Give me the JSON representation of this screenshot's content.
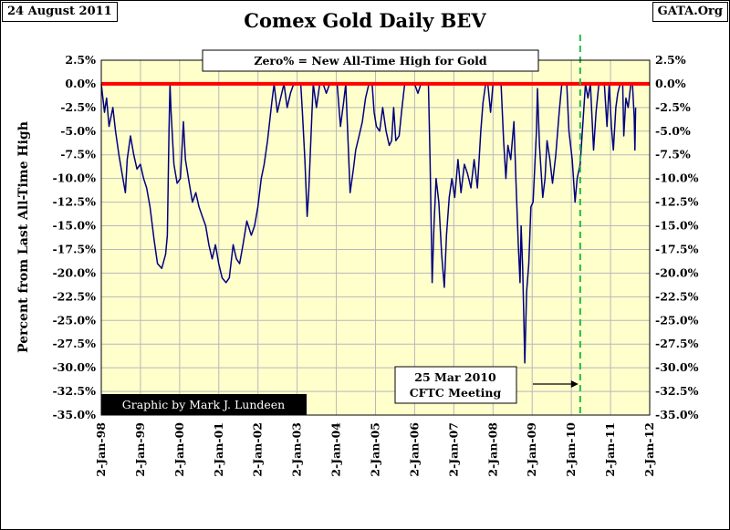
{
  "header": {
    "date": "24 August 2011",
    "source": "GATA.Org"
  },
  "chart_data": {
    "type": "line",
    "title": "Comex Gold Daily BEV",
    "ylabel": "Percent from Last All-Time High",
    "xlabel": "",
    "ylim": [
      -35.0,
      2.5
    ],
    "grid": true,
    "y_ticks": [
      "2.5%",
      "0.0%",
      "-2.5%",
      "-5.0%",
      "-7.5%",
      "-10.0%",
      "-12.5%",
      "-15.0%",
      "-17.5%",
      "-20.0%",
      "-22.5%",
      "-25.0%",
      "-27.5%",
      "-30.0%",
      "-32.5%",
      "-35.0%"
    ],
    "x_ticks": [
      "2-Jan-98",
      "2-Jan-99",
      "2-Jan-00",
      "2-Jan-01",
      "2-Jan-02",
      "2-Jan-03",
      "2-Jan-04",
      "2-Jan-05",
      "2-Jan-06",
      "2-Jan-07",
      "2-Jan-08",
      "2-Jan-09",
      "2-Jan-10",
      "2-Jan-11",
      "2-Jan-12"
    ],
    "x_range": [
      "1998-01-02",
      "2012-01-02"
    ],
    "series": [
      {
        "color": "#000080",
        "points": [
          [
            "1998-01-02",
            0.0
          ],
          [
            "1998-02-01",
            -3.0
          ],
          [
            "1998-02-20",
            -1.5
          ],
          [
            "1998-03-15",
            -4.5
          ],
          [
            "1998-04-20",
            -2.5
          ],
          [
            "1998-05-15",
            -5.0
          ],
          [
            "1998-06-15",
            -7.5
          ],
          [
            "1998-07-15",
            -9.5
          ],
          [
            "1998-08-15",
            -11.5
          ],
          [
            "1998-09-01",
            -8.0
          ],
          [
            "1998-10-01",
            -5.5
          ],
          [
            "1998-11-01",
            -7.5
          ],
          [
            "1998-12-01",
            -9.0
          ],
          [
            "1999-01-01",
            -8.5
          ],
          [
            "1999-02-01",
            -10.0
          ],
          [
            "1999-03-01",
            -11.0
          ],
          [
            "1999-04-01",
            -13.0
          ],
          [
            "1999-05-10",
            -16.5
          ],
          [
            "1999-06-10",
            -19.0
          ],
          [
            "1999-07-20",
            -19.5
          ],
          [
            "1999-08-25",
            -18.0
          ],
          [
            "1999-09-10",
            -16.0
          ],
          [
            "1999-09-25",
            -5.0
          ],
          [
            "1999-10-05",
            0.0
          ],
          [
            "1999-10-15",
            -3.0
          ],
          [
            "1999-11-10",
            -8.5
          ],
          [
            "1999-12-10",
            -10.5
          ],
          [
            "2000-01-10",
            -10.0
          ],
          [
            "2000-02-07",
            -4.0
          ],
          [
            "2000-02-25",
            -8.0
          ],
          [
            "2000-04-01",
            -10.5
          ],
          [
            "2000-05-01",
            -12.5
          ],
          [
            "2000-06-01",
            -11.5
          ],
          [
            "2000-07-01",
            -13.0
          ],
          [
            "2000-08-01",
            -14.0
          ],
          [
            "2000-09-01",
            -15.0
          ],
          [
            "2000-10-01",
            -17.0
          ],
          [
            "2000-11-01",
            -18.5
          ],
          [
            "2000-12-01",
            -17.0
          ],
          [
            "2001-01-01",
            -19.0
          ],
          [
            "2001-02-01",
            -20.5
          ],
          [
            "2001-03-10",
            -21.0
          ],
          [
            "2001-04-10",
            -20.5
          ],
          [
            "2001-05-15",
            -17.0
          ],
          [
            "2001-06-15",
            -18.5
          ],
          [
            "2001-07-15",
            -19.0
          ],
          [
            "2001-08-15",
            -17.0
          ],
          [
            "2001-09-20",
            -14.5
          ],
          [
            "2001-11-01",
            -16.0
          ],
          [
            "2001-12-01",
            -15.0
          ],
          [
            "2002-01-01",
            -13.0
          ],
          [
            "2002-02-01",
            -10.0
          ],
          [
            "2002-03-01",
            -8.5
          ],
          [
            "2002-04-01",
            -6.0
          ],
          [
            "2002-05-10",
            -2.0
          ],
          [
            "2002-06-01",
            0.0
          ],
          [
            "2002-07-01",
            -3.0
          ],
          [
            "2002-08-01",
            -1.5
          ],
          [
            "2002-09-01",
            0.0
          ],
          [
            "2002-10-01",
            -2.5
          ],
          [
            "2002-11-01",
            -1.0
          ],
          [
            "2002-12-01",
            0.0
          ],
          [
            "2003-01-15",
            0.0
          ],
          [
            "2003-02-05",
            0.0
          ],
          [
            "2003-02-20",
            -3.0
          ],
          [
            "2003-03-15",
            -8.0
          ],
          [
            "2003-04-05",
            -14.0
          ],
          [
            "2003-04-20",
            -11.5
          ],
          [
            "2003-05-20",
            -3.0
          ],
          [
            "2003-06-01",
            0.0
          ],
          [
            "2003-07-01",
            -2.5
          ],
          [
            "2003-08-01",
            0.0
          ],
          [
            "2003-09-01",
            0.0
          ],
          [
            "2003-10-01",
            -1.0
          ],
          [
            "2003-11-01",
            0.0
          ],
          [
            "2003-12-01",
            0.0
          ],
          [
            "2004-01-10",
            0.0
          ],
          [
            "2004-02-10",
            -4.5
          ],
          [
            "2004-03-10",
            -2.0
          ],
          [
            "2004-03-30",
            0.0
          ],
          [
            "2004-04-20",
            -6.0
          ],
          [
            "2004-05-10",
            -11.5
          ],
          [
            "2004-06-10",
            -9.0
          ],
          [
            "2004-07-01",
            -7.0
          ],
          [
            "2004-08-01",
            -5.5
          ],
          [
            "2004-09-01",
            -4.0
          ],
          [
            "2004-10-01",
            -1.5
          ],
          [
            "2004-11-01",
            0.0
          ],
          [
            "2004-12-01",
            0.0
          ],
          [
            "2004-12-20",
            -3.0
          ],
          [
            "2005-01-10",
            -4.5
          ],
          [
            "2005-02-10",
            -5.0
          ],
          [
            "2005-03-10",
            -2.5
          ],
          [
            "2005-04-10",
            -5.0
          ],
          [
            "2005-05-10",
            -6.5
          ],
          [
            "2005-06-01",
            -6.0
          ],
          [
            "2005-06-20",
            -2.5
          ],
          [
            "2005-07-10",
            -6.0
          ],
          [
            "2005-08-10",
            -5.5
          ],
          [
            "2005-09-01",
            -3.0
          ],
          [
            "2005-10-01",
            0.0
          ],
          [
            "2005-11-01",
            0.0
          ],
          [
            "2005-12-01",
            0.0
          ],
          [
            "2006-01-01",
            0.0
          ],
          [
            "2006-02-01",
            -1.0
          ],
          [
            "2006-03-01",
            0.0
          ],
          [
            "2006-04-01",
            0.0
          ],
          [
            "2006-05-10",
            0.0
          ],
          [
            "2006-05-25",
            -8.0
          ],
          [
            "2006-06-14",
            -21.0
          ],
          [
            "2006-07-01",
            -15.0
          ],
          [
            "2006-07-20",
            -10.0
          ],
          [
            "2006-08-15",
            -12.5
          ],
          [
            "2006-09-10",
            -18.0
          ],
          [
            "2006-10-05",
            -21.5
          ],
          [
            "2006-10-25",
            -16.0
          ],
          [
            "2006-11-20",
            -12.0
          ],
          [
            "2006-12-15",
            -10.0
          ],
          [
            "2007-01-10",
            -12.0
          ],
          [
            "2007-02-10",
            -8.0
          ],
          [
            "2007-03-10",
            -11.5
          ],
          [
            "2007-04-10",
            -8.5
          ],
          [
            "2007-05-10",
            -9.5
          ],
          [
            "2007-06-10",
            -11.0
          ],
          [
            "2007-07-10",
            -8.0
          ],
          [
            "2007-08-10",
            -11.0
          ],
          [
            "2007-09-10",
            -5.0
          ],
          [
            "2007-10-01",
            -2.0
          ],
          [
            "2007-10-25",
            0.0
          ],
          [
            "2007-11-15",
            0.0
          ],
          [
            "2007-12-10",
            -3.0
          ],
          [
            "2008-01-02",
            0.0
          ],
          [
            "2008-02-01",
            0.0
          ],
          [
            "2008-03-17",
            0.0
          ],
          [
            "2008-04-10",
            -6.0
          ],
          [
            "2008-05-01",
            -10.0
          ],
          [
            "2008-05-20",
            -6.5
          ],
          [
            "2008-06-15",
            -8.0
          ],
          [
            "2008-07-15",
            -4.0
          ],
          [
            "2008-08-05",
            -11.0
          ],
          [
            "2008-08-25",
            -17.0
          ],
          [
            "2008-09-10",
            -21.0
          ],
          [
            "2008-09-20",
            -15.0
          ],
          [
            "2008-10-05",
            -19.5
          ],
          [
            "2008-10-15",
            -24.5
          ],
          [
            "2008-10-24",
            -29.5
          ],
          [
            "2008-11-10",
            -22.0
          ],
          [
            "2008-12-01",
            -19.0
          ],
          [
            "2008-12-20",
            -13.0
          ],
          [
            "2009-01-10",
            -12.5
          ],
          [
            "2009-02-10",
            -5.0
          ],
          [
            "2009-02-20",
            -0.5
          ],
          [
            "2009-03-10",
            -6.5
          ],
          [
            "2009-04-10",
            -12.0
          ],
          [
            "2009-05-01",
            -10.0
          ],
          [
            "2009-05-20",
            -6.0
          ],
          [
            "2009-06-15",
            -8.0
          ],
          [
            "2009-07-10",
            -10.5
          ],
          [
            "2009-08-10",
            -7.5
          ],
          [
            "2009-09-10",
            -3.0
          ],
          [
            "2009-10-05",
            0.0
          ],
          [
            "2009-10-25",
            0.0
          ],
          [
            "2009-11-20",
            0.0
          ],
          [
            "2009-12-10",
            -5.0
          ],
          [
            "2010-01-10",
            -8.0
          ],
          [
            "2010-02-05",
            -12.5
          ],
          [
            "2010-02-25",
            -10.0
          ],
          [
            "2010-03-25",
            -8.5
          ],
          [
            "2010-04-20",
            -4.0
          ],
          [
            "2010-05-13",
            0.0
          ],
          [
            "2010-06-05",
            -1.5
          ],
          [
            "2010-06-28",
            0.0
          ],
          [
            "2010-07-28",
            -7.0
          ],
          [
            "2010-08-20",
            -3.0
          ],
          [
            "2010-09-15",
            0.0
          ],
          [
            "2010-10-15",
            0.0
          ],
          [
            "2010-11-05",
            0.0
          ],
          [
            "2010-11-30",
            -4.5
          ],
          [
            "2010-12-20",
            0.0
          ],
          [
            "2011-01-10",
            -4.5
          ],
          [
            "2011-01-28",
            -7.0
          ],
          [
            "2011-02-20",
            -2.5
          ],
          [
            "2011-03-10",
            -1.0
          ],
          [
            "2011-04-01",
            0.0
          ],
          [
            "2011-04-25",
            0.0
          ],
          [
            "2011-05-05",
            -5.5
          ],
          [
            "2011-05-25",
            -1.5
          ],
          [
            "2011-06-15",
            -2.5
          ],
          [
            "2011-07-10",
            0.0
          ],
          [
            "2011-07-25",
            0.0
          ],
          [
            "2011-08-10",
            -3.5
          ],
          [
            "2011-08-17",
            -7.0
          ],
          [
            "2011-08-24",
            -2.5
          ]
        ]
      }
    ],
    "reference_line": {
      "y": 0.0,
      "color": "#ff0000"
    },
    "event_line": {
      "date": "2010-03-25",
      "color": "#22bb44"
    },
    "annotations": {
      "zero_note": "Zero% = New All-Time High for Gold",
      "event_note_line1": "25 Mar 2010",
      "event_note_line2": "CFTC Meeting",
      "credit": "Graphic by Mark J. Lundeen"
    },
    "plot_background": "#ffffcc"
  }
}
